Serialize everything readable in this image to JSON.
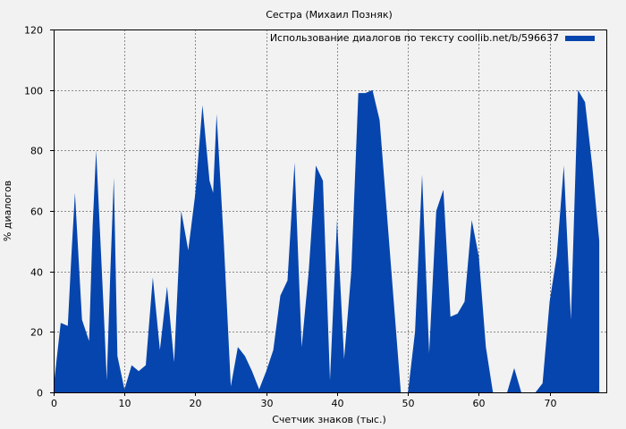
{
  "chart_data": {
    "type": "area",
    "title": "Сестра (Михаил Позняк)",
    "xlabel": "Счетчик знаков (тыс.)",
    "ylabel": "% диалогов",
    "xlim": [
      0,
      78
    ],
    "ylim": [
      0,
      120
    ],
    "x_ticks": [
      0,
      10,
      20,
      30,
      40,
      50,
      60,
      70
    ],
    "y_ticks": [
      0,
      20,
      40,
      60,
      80,
      100,
      120
    ],
    "grid": true,
    "legend": "top-right",
    "series": [
      {
        "name": "Использование диалогов по тексту coollib.net/b/596637",
        "color": "#0645ad",
        "x": [
          0,
          1,
          2,
          2.5,
          3,
          4,
          5,
          5.5,
          6,
          7,
          7.5,
          8,
          8.5,
          9,
          10,
          11,
          12,
          13,
          14,
          15,
          16,
          17,
          18,
          19,
          20,
          21,
          22,
          22.5,
          23,
          24,
          25,
          26,
          27,
          28,
          29,
          30,
          31,
          32,
          33,
          34,
          35,
          36,
          37,
          38,
          39,
          40,
          41,
          42,
          43,
          44,
          45,
          46,
          47,
          48,
          49,
          50,
          51,
          52,
          53,
          54,
          55,
          56,
          57,
          58,
          59,
          60,
          61,
          62,
          63,
          64,
          65,
          66,
          67,
          68,
          69,
          70,
          71,
          72,
          73,
          74,
          75,
          76,
          77
        ],
        "values": [
          2,
          23,
          22,
          45,
          66,
          24,
          17,
          55,
          80,
          30,
          4,
          40,
          71,
          12,
          1,
          9,
          7,
          9,
          38,
          14,
          35,
          10,
          60,
          47,
          66,
          95,
          70,
          66,
          92,
          50,
          2,
          15,
          12,
          7,
          1,
          7,
          14,
          32,
          37,
          76,
          15,
          40,
          75,
          70,
          4,
          57,
          11,
          40,
          99,
          99,
          100,
          90,
          60,
          30,
          0,
          0,
          20,
          72,
          13,
          60,
          67,
          25,
          26,
          30,
          57,
          45,
          15,
          0,
          0,
          0,
          8,
          0,
          0,
          0,
          3,
          30,
          45,
          75,
          24,
          100,
          96,
          75,
          50
        ]
      }
    ]
  }
}
